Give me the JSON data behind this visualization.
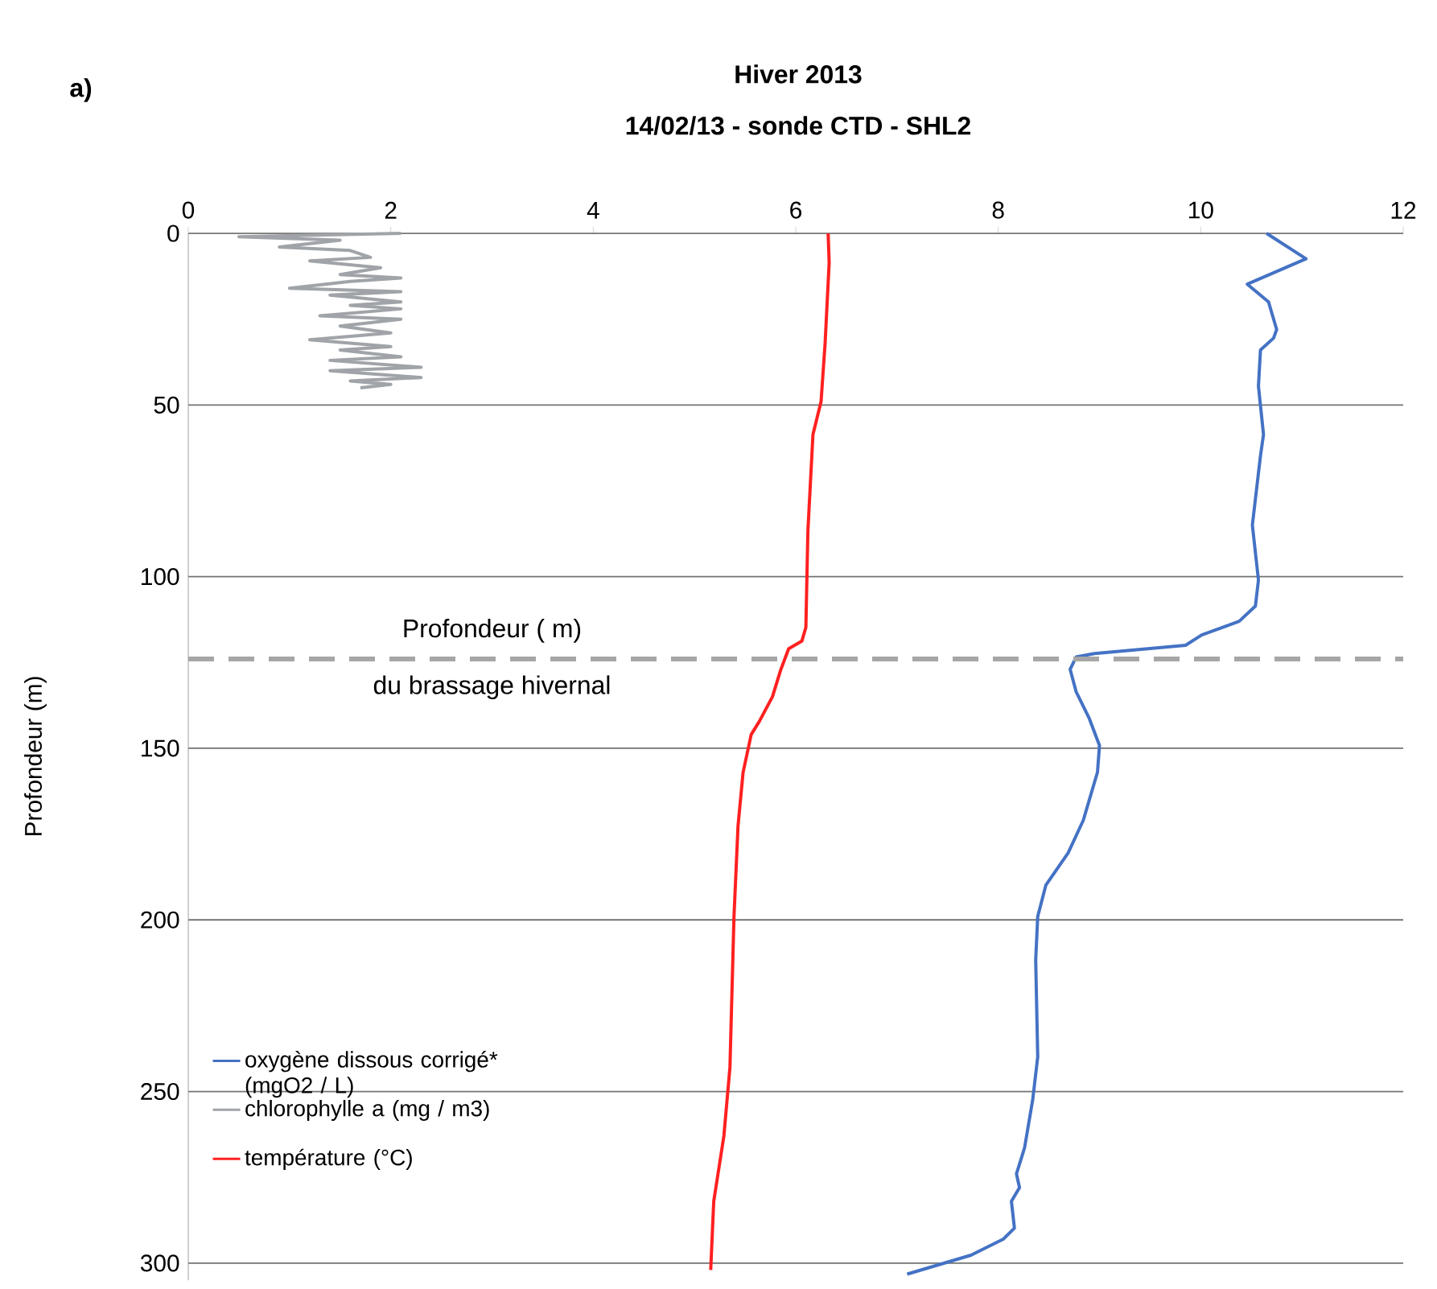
{
  "chart_data": {
    "type": "line",
    "title": "Hiver 2013",
    "subtitle": "14/02/13 - sonde CTD - SHL2",
    "ylabel": "Profondeur (m)",
    "annotations": [
      "a)",
      "du brassage hivernal"
    ],
    "xlim": [
      0,
      12
    ],
    "xticks": [
      0,
      2,
      4,
      6,
      8,
      10,
      12
    ],
    "ylim": [
      305,
      0
    ],
    "yticks": [
      0,
      50,
      100,
      150,
      200,
      250,
      300
    ],
    "grid": "y",
    "legend": "bottom left",
    "ref_lines": [
      {
        "axis": "y",
        "value": 124,
        "color": "#a6a6a6",
        "line_style": "dashed",
        "label": "Profondeur ( m)"
      }
    ],
    "series": [
      {
        "name": "oxygène dissous corrigé* (mgO2 / L)",
        "color": "#4472c4",
        "x": [
          10.65,
          11.04,
          10.46,
          10.67,
          10.75,
          10.72,
          10.59,
          10.57,
          10.62,
          10.59,
          10.51,
          10.57,
          10.54,
          10.38,
          10.01,
          9.85,
          8.95,
          8.77,
          8.71,
          8.77,
          8.9,
          9.0,
          8.98,
          8.84,
          8.69,
          8.47,
          8.39,
          8.37,
          8.39,
          8.34,
          8.26,
          8.18,
          8.21,
          8.13,
          8.16,
          8.05,
          7.73,
          7.1
        ],
        "values": [
          0,
          7.4,
          14.8,
          20,
          28,
          30.5,
          34,
          44.5,
          58.6,
          64.8,
          85,
          101,
          108.6,
          113,
          117,
          120,
          122.4,
          123.4,
          127,
          133.6,
          141.4,
          149.2,
          157,
          171,
          180.5,
          189.9,
          199,
          211.7,
          239.9,
          252.5,
          266.4,
          274,
          278,
          282,
          289.8,
          293,
          297.7,
          303.2
        ]
      },
      {
        "name": "chlorophylle a (mg / m3)",
        "color": "#a0a4a8",
        "x": [
          2.1,
          0.5,
          1.5,
          0.9,
          1.6,
          1.8,
          1.2,
          1.9,
          1.5,
          2.1,
          1.6,
          1.0,
          2.1,
          1.4,
          2.1,
          1.6,
          2.1,
          1.3,
          2.1,
          1.5,
          2.0,
          1.2,
          2.0,
          1.5,
          2.1,
          1.4,
          2.3,
          1.4,
          2.3,
          1.6,
          2.0,
          1.7
        ],
        "values": [
          0,
          1,
          2,
          4,
          5,
          7,
          8,
          10,
          12,
          13,
          14,
          16,
          17,
          18,
          20,
          21,
          22,
          24,
          25,
          27,
          29,
          31,
          33,
          34,
          36,
          37,
          39,
          40,
          42,
          43,
          44,
          45
        ]
      },
      {
        "name": "température (°C)",
        "color": "#ff2020",
        "x": [
          6.32,
          6.33,
          6.29,
          6.25,
          6.17,
          6.12,
          6.1,
          6.06,
          5.93,
          5.85,
          5.77,
          5.64,
          5.56,
          5.48,
          5.43,
          5.39,
          5.35,
          5.29,
          5.19,
          5.16
        ],
        "values": [
          0,
          8.6,
          32,
          49,
          58.6,
          86.7,
          114.8,
          118.8,
          121,
          127.3,
          135,
          142.2,
          146,
          157,
          172.6,
          199,
          243,
          263,
          282,
          302
        ]
      }
    ]
  }
}
